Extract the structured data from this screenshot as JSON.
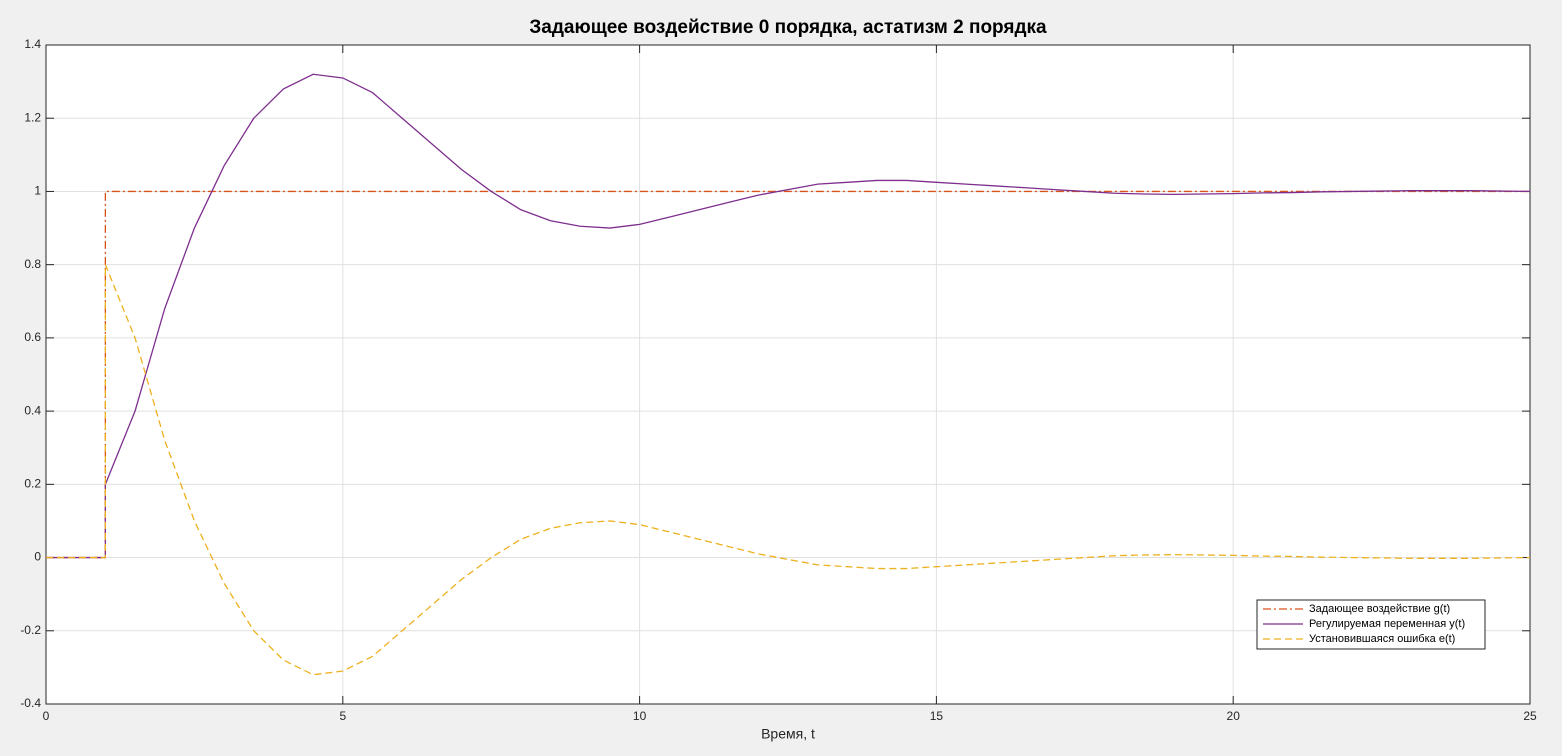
{
  "chart_data": {
    "type": "line",
    "title": "Задающее воздействие 0 порядка, астатизм 2 порядка",
    "x_label": "Время, t",
    "x": [
      0,
      1,
      1,
      1.5,
      2,
      2.5,
      3,
      3.5,
      4,
      4.5,
      5,
      5.5,
      6,
      6.5,
      7,
      7.5,
      8,
      8.5,
      9,
      9.5,
      10,
      10.5,
      11,
      11.5,
      12,
      12.5,
      13,
      13.5,
      14,
      14.5,
      15,
      15.5,
      16,
      16.5,
      17,
      17.5,
      18,
      18.5,
      19,
      19.5,
      20,
      20.5,
      21,
      21.5,
      22,
      22.5,
      23,
      23.5,
      24,
      24.5,
      25
    ],
    "series": [
      {
        "name": "Задающее воздействие g(t)",
        "color": "#d95319",
        "dash": "8 3 2 3",
        "values": [
          0,
          0,
          1,
          1,
          1,
          1,
          1,
          1,
          1,
          1,
          1,
          1,
          1,
          1,
          1,
          1,
          1,
          1,
          1,
          1,
          1,
          1,
          1,
          1,
          1,
          1,
          1,
          1,
          1,
          1,
          1,
          1,
          1,
          1,
          1,
          1,
          1,
          1,
          1,
          1,
          1,
          1,
          1,
          1,
          1,
          1,
          1,
          1,
          1,
          1,
          1
        ]
      },
      {
        "name": "Регулируемая переменная y(t)",
        "color": "#7e2f8e",
        "dash": "none",
        "values": [
          0,
          0,
          0.2,
          0.4,
          0.68,
          0.9,
          1.07,
          1.2,
          1.28,
          1.32,
          1.31,
          1.27,
          1.2,
          1.13,
          1.06,
          1.0,
          0.95,
          0.92,
          0.905,
          0.9,
          0.91,
          0.93,
          0.95,
          0.97,
          0.99,
          1.005,
          1.02,
          1.025,
          1.03,
          1.03,
          1.025,
          1.02,
          1.015,
          1.01,
          1.005,
          1.0,
          0.995,
          0.993,
          0.992,
          0.993,
          0.994,
          0.996,
          0.997,
          0.999,
          1.0,
          1.001,
          1.002,
          1.002,
          1.002,
          1.001,
          1.0
        ]
      },
      {
        "name": "Установившаяся ошибка e(t)",
        "color": "#edb120",
        "dash": "7 4",
        "values": [
          0,
          0,
          0.8,
          0.6,
          0.32,
          0.1,
          -0.07,
          -0.2,
          -0.28,
          -0.32,
          -0.31,
          -0.27,
          -0.2,
          -0.13,
          -0.06,
          0,
          0.05,
          0.08,
          0.095,
          0.1,
          0.09,
          0.07,
          0.05,
          0.03,
          0.01,
          -0.005,
          -0.02,
          -0.025,
          -0.03,
          -0.03,
          -0.025,
          -0.02,
          -0.015,
          -0.01,
          -0.005,
          0,
          0.005,
          0.007,
          0.008,
          0.007,
          0.006,
          0.004,
          0.003,
          0.001,
          0,
          -0.001,
          -0.002,
          -0.002,
          -0.002,
          -0.001,
          0
        ]
      }
    ],
    "xlim": [
      0,
      25
    ],
    "xticks": [
      0,
      5,
      10,
      15,
      20,
      25
    ],
    "ylim": [
      -0.4,
      1.4
    ],
    "yticks": [
      -0.4,
      -0.2,
      0,
      0.2,
      0.4,
      0.6,
      0.8,
      1,
      1.2,
      1.4
    ],
    "grid": true,
    "legend_position": "lower right"
  }
}
